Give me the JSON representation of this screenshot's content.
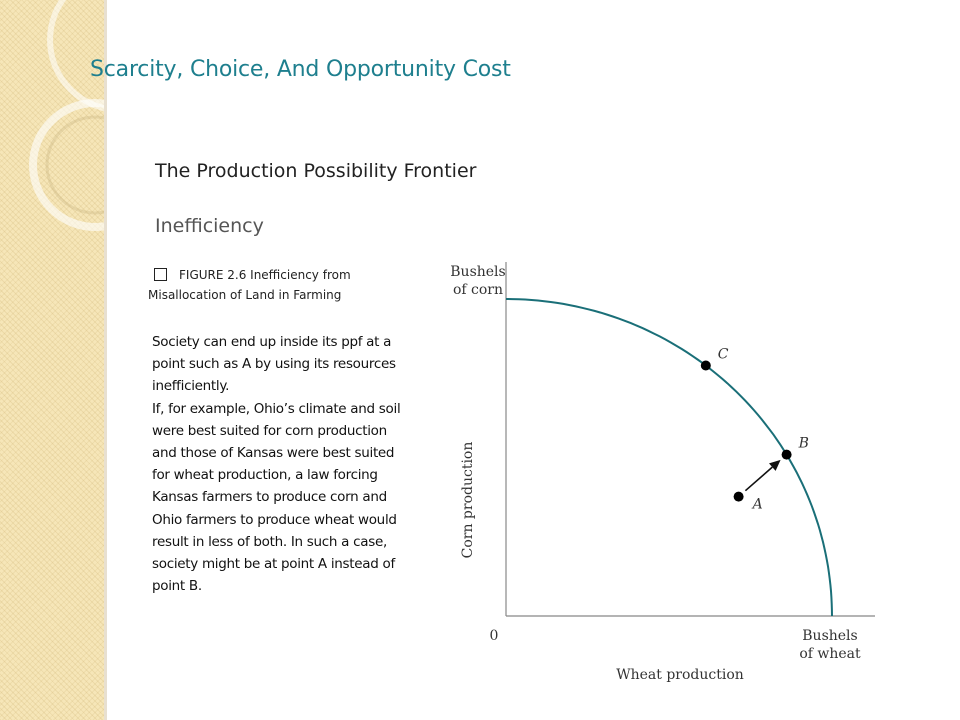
{
  "slide": {
    "title": "Scarcity, Choice, And Opportunity Cost",
    "subtitle": "The Production Possibility Frontier",
    "section": "Inefficiency"
  },
  "figure": {
    "caption_line1": "FIGURE 2.6  Inefficiency from",
    "caption_line2": "Misallocation of Land in Farming"
  },
  "body": {
    "paragraph1": "Society can end up inside its ppf at a point such as A by using its resources inefficiently.",
    "paragraph2": "If, for example, Ohio’s climate and soil were best suited for corn production and those of Kansas were best suited for wheat production, a law forcing Kansas farmers to produce corn and Ohio farmers to produce wheat would result in less of both. In such a case, society might be at point A instead of point B."
  },
  "diagram": {
    "y_unit_line1": "Bushels",
    "y_unit_line2": "of corn",
    "y_axis_label": "Corn production",
    "x_unit_line1": "Bushels",
    "x_unit_line2": "of wheat",
    "x_axis_label": "Wheat production",
    "origin_label": "0",
    "points": [
      {
        "label": "C",
        "t": 0.42
      },
      {
        "label": "B",
        "t": 0.66
      },
      {
        "label": "A",
        "inside": true
      }
    ],
    "curve_color": "#1a6f78"
  }
}
